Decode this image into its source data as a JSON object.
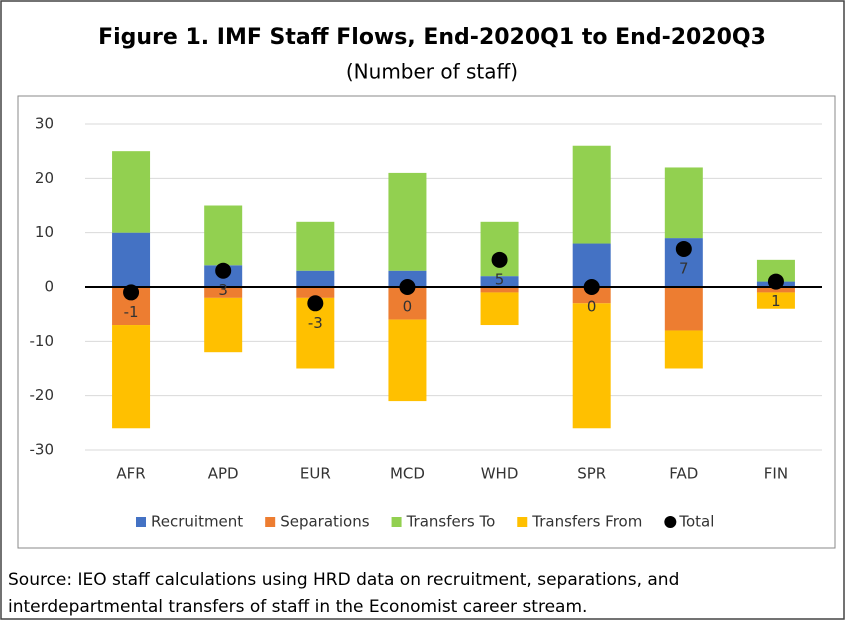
{
  "chart_data": {
    "type": "bar",
    "stacked": true,
    "title": "Figure 1. IMF Staff Flows, End-2020Q1 to End-2020Q3",
    "subtitle": "(Number of staff)",
    "categories": [
      "AFR",
      "APD",
      "EUR",
      "MCD",
      "WHD",
      "SPR",
      "FAD",
      "FIN"
    ],
    "series": [
      {
        "name": "Recruitment",
        "color": "#4472c4",
        "values": [
          10,
          4,
          3,
          3,
          2,
          8,
          9,
          1
        ]
      },
      {
        "name": "Separations",
        "color": "#ed7d31",
        "values": [
          -7,
          -2,
          -2,
          -6,
          -1,
          -3,
          -8,
          -1
        ]
      },
      {
        "name": "Transfers To",
        "color": "#92d050",
        "values": [
          15,
          11,
          9,
          18,
          10,
          18,
          13,
          4
        ]
      },
      {
        "name": "Transfers From",
        "color": "#ffc000",
        "values": [
          -19,
          -10,
          -13,
          -15,
          -6,
          -23,
          -7,
          -3
        ]
      },
      {
        "name": "Total",
        "type": "scatter",
        "color": "#000000",
        "values": [
          -1,
          3,
          -3,
          0,
          5,
          0,
          7,
          1
        ],
        "data_labels": true
      }
    ],
    "ylim": [
      -30,
      30
    ],
    "yticks": [
      -30,
      -20,
      -10,
      0,
      10,
      20,
      30
    ],
    "grid": true,
    "legend": "bottom",
    "source": [
      "Source: IEO staff calculations using HRD data on recruitment, separations, and",
      "interdepartmental transfers of staff in the Economist career stream."
    ]
  }
}
